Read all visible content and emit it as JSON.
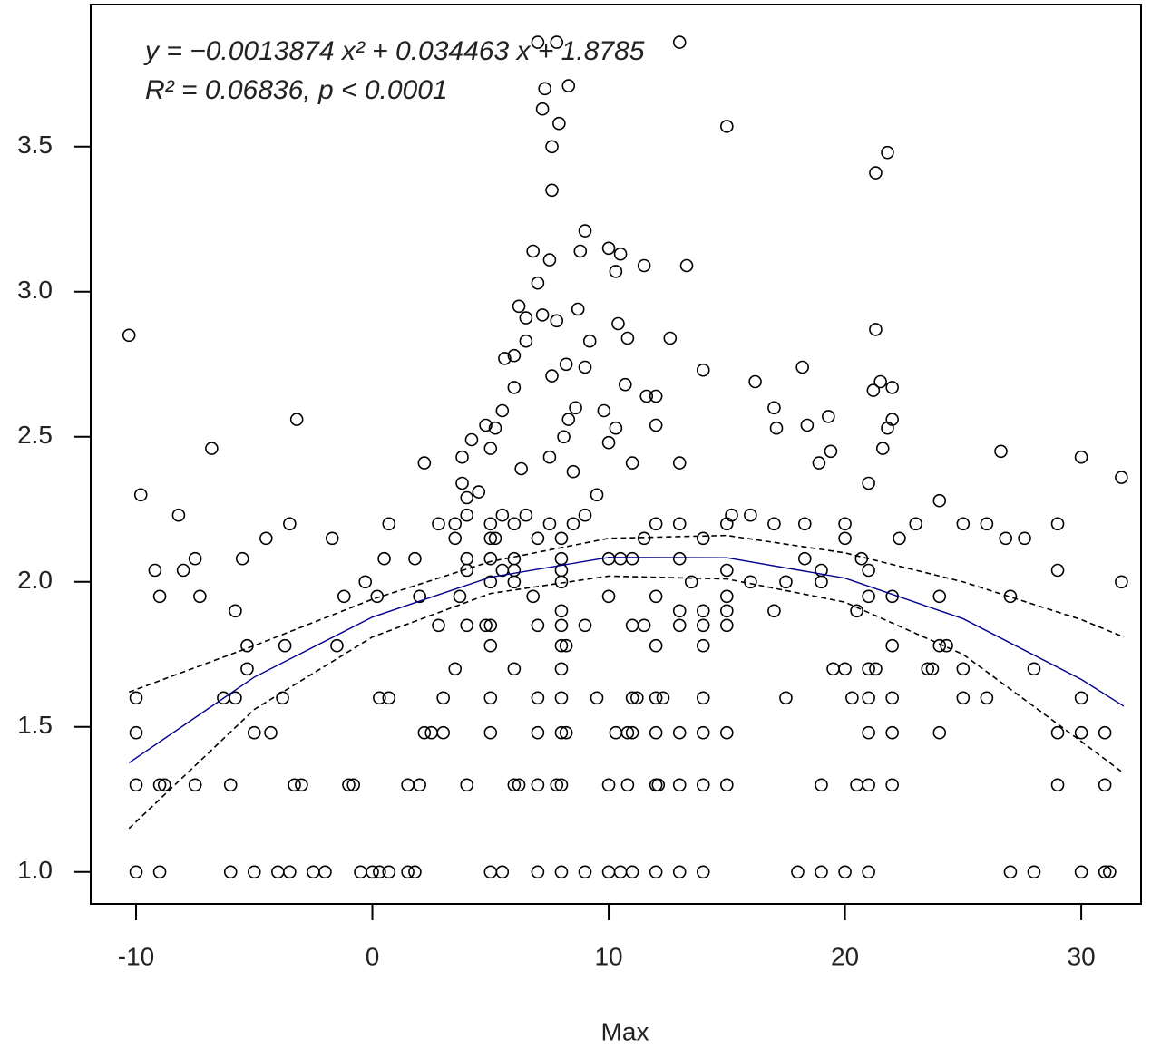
{
  "chart_data": {
    "type": "scatter",
    "xlabel": "Max",
    "annotations": [
      "y = −0.0013874 x² + 0.034463 x + 1.8785",
      "R² = 0.06836,  p < 0.0001"
    ],
    "xlim": [
      -11.92,
      32.53
    ],
    "ylim": [
      0.89,
      3.99
    ],
    "xticks": [
      -10,
      0,
      10,
      20,
      30
    ],
    "yticks": [
      {
        "value": 1,
        "label": "1.0"
      },
      1.5,
      {
        "value": 2,
        "label": "2.0"
      },
      2.5,
      {
        "value": 3,
        "label": "3.0"
      },
      3.5
    ],
    "series": [
      {
        "type": "scatter",
        "color": "#000000",
        "x": [
          -10,
          -9,
          -6,
          -5,
          -4,
          -3.5,
          -2.5,
          -2,
          -0.5,
          0,
          0.3,
          0.7,
          1.5,
          1.8,
          5,
          5.5,
          7,
          8,
          9,
          10,
          10.5,
          11,
          12,
          13,
          14,
          18,
          19,
          20,
          21,
          27,
          28,
          30,
          31,
          31.2,
          -10,
          -9,
          -8.8,
          -7.5,
          -6,
          -3.3,
          -3,
          -1,
          -0.8,
          1.5,
          2,
          4,
          6,
          6.2,
          7,
          7.8,
          8,
          10,
          10.8,
          12,
          12.1,
          13,
          14,
          15,
          19,
          20.5,
          21,
          22,
          29,
          31,
          -10,
          -5,
          -4.3,
          2.2,
          2.5,
          3,
          5,
          7,
          8,
          8.2,
          10.3,
          10.8,
          11,
          12,
          13,
          14,
          15,
          21,
          22,
          24,
          29,
          30,
          31,
          -10,
          -6.3,
          -5.8,
          -3.8,
          0.3,
          0.7,
          3,
          5,
          7,
          8,
          9.5,
          11,
          11.2,
          12,
          12.3,
          14,
          17.5,
          20.3,
          21,
          22,
          25,
          26,
          30,
          -5.3,
          3.5,
          6,
          8,
          19.5,
          20,
          21,
          21.3,
          23.5,
          23.7,
          25,
          28,
          -5.3,
          -3.7,
          -1.5,
          5,
          8,
          8.2,
          12,
          14,
          22,
          24,
          24.3,
          2.8,
          4,
          4.8,
          5,
          7,
          8,
          9,
          11,
          11.5,
          13,
          14,
          15,
          -5.8,
          8,
          13,
          14,
          15,
          17,
          20.5,
          -9,
          -7.3,
          -1.2,
          0.2,
          2,
          3.7,
          6.8,
          10,
          12,
          15,
          21,
          22,
          24,
          27,
          -0.3,
          5,
          6,
          8,
          13.5,
          16,
          17.5,
          19,
          31.7,
          -9.2,
          -8,
          4,
          5.5,
          6,
          8,
          19,
          21,
          29,
          15,
          -7.5,
          -5.5,
          0.5,
          1.8,
          4,
          5,
          6,
          8,
          10,
          10.5,
          11,
          13,
          18.3,
          20.7,
          -1.7,
          -4.5,
          3.5,
          5,
          5.2,
          7,
          8,
          11.5,
          14,
          20,
          22.3,
          26.8,
          27.6,
          -3.5,
          0.7,
          2.8,
          3.5,
          5,
          6,
          7.5,
          8.5,
          12,
          13,
          15,
          17,
          18.3,
          20,
          23,
          25,
          26,
          29,
          -8.2,
          4,
          5.5,
          6.5,
          9,
          15.2,
          16,
          -10.3,
          -9.8,
          -6.8,
          -3.2,
          2.2,
          3.8,
          3.8,
          4,
          4.2,
          4.5,
          4.8,
          5,
          5.2,
          5.5,
          5.6,
          6,
          6,
          6.2,
          6.3,
          6.5,
          6.5,
          6.8,
          7,
          7.2,
          7.5,
          7.5,
          7.6,
          7.8,
          7.6,
          7.6,
          7.9,
          7.2,
          7.3,
          7,
          7.8,
          8.3,
          8.2,
          8.3,
          8.1,
          8.5,
          8.7,
          8.8,
          8.6,
          9,
          9,
          9.2,
          9.5,
          9.8,
          10,
          10.3,
          10.5,
          10.4,
          10.3,
          10,
          10.7,
          10.8,
          11,
          11.5,
          11.6,
          12,
          12,
          12.6,
          13,
          13.3,
          13,
          14,
          15,
          16.2,
          17,
          17.1,
          18.2,
          18.4,
          18.9,
          19.3,
          19.4,
          21.3,
          21.8,
          21.3,
          21.5,
          21.2,
          22,
          22,
          21.8,
          21.6,
          21,
          24,
          26.6,
          30,
          31.7
        ],
        "values": [
          1,
          1,
          1,
          1,
          1,
          1,
          1,
          1,
          1,
          1,
          1,
          1,
          1,
          1,
          1,
          1,
          1,
          1,
          1,
          1,
          1,
          1,
          1,
          1,
          1,
          1,
          1,
          1,
          1,
          1,
          1,
          1,
          1,
          1,
          1.3,
          1.3,
          1.3,
          1.3,
          1.3,
          1.3,
          1.3,
          1.3,
          1.3,
          1.3,
          1.3,
          1.3,
          1.3,
          1.3,
          1.3,
          1.3,
          1.3,
          1.3,
          1.3,
          1.3,
          1.3,
          1.3,
          1.3,
          1.3,
          1.3,
          1.3,
          1.3,
          1.3,
          1.3,
          1.3,
          1.48,
          1.48,
          1.48,
          1.48,
          1.48,
          1.48,
          1.48,
          1.48,
          1.48,
          1.48,
          1.48,
          1.48,
          1.48,
          1.48,
          1.48,
          1.48,
          1.48,
          1.48,
          1.48,
          1.48,
          1.48,
          1.48,
          1.48,
          1.6,
          1.6,
          1.6,
          1.6,
          1.6,
          1.6,
          1.6,
          1.6,
          1.6,
          1.6,
          1.6,
          1.6,
          1.6,
          1.6,
          1.6,
          1.6,
          1.6,
          1.6,
          1.6,
          1.6,
          1.6,
          1.6,
          1.6,
          1.7,
          1.7,
          1.7,
          1.7,
          1.7,
          1.7,
          1.7,
          1.7,
          1.7,
          1.7,
          1.7,
          1.7,
          1.78,
          1.78,
          1.78,
          1.78,
          1.78,
          1.78,
          1.78,
          1.78,
          1.78,
          1.78,
          1.78,
          1.85,
          1.85,
          1.85,
          1.85,
          1.85,
          1.85,
          1.85,
          1.85,
          1.85,
          1.85,
          1.85,
          1.85,
          1.9,
          1.9,
          1.9,
          1.9,
          1.9,
          1.9,
          1.9,
          1.95,
          1.95,
          1.95,
          1.95,
          1.95,
          1.95,
          1.95,
          1.95,
          1.95,
          1.95,
          1.95,
          1.95,
          1.95,
          1.95,
          2,
          2,
          2,
          2,
          2,
          2,
          2,
          2,
          2,
          2.04,
          2.04,
          2.04,
          2.04,
          2.04,
          2.04,
          2.04,
          2.04,
          2.04,
          2.04,
          2.08,
          2.08,
          2.08,
          2.08,
          2.08,
          2.08,
          2.08,
          2.08,
          2.08,
          2.08,
          2.08,
          2.08,
          2.08,
          2.08,
          2.15,
          2.15,
          2.15,
          2.15,
          2.15,
          2.15,
          2.15,
          2.15,
          2.15,
          2.15,
          2.15,
          2.15,
          2.15,
          2.2,
          2.2,
          2.2,
          2.2,
          2.2,
          2.2,
          2.2,
          2.2,
          2.2,
          2.2,
          2.2,
          2.2,
          2.2,
          2.2,
          2.2,
          2.2,
          2.2,
          2.2,
          2.23,
          2.23,
          2.23,
          2.23,
          2.23,
          2.23,
          2.23,
          2.85,
          2.3,
          2.46,
          2.56,
          2.41,
          2.34,
          2.43,
          2.29,
          2.49,
          2.31,
          2.54,
          2.46,
          2.53,
          2.59,
          2.77,
          2.78,
          2.67,
          2.95,
          2.39,
          2.83,
          2.91,
          3.14,
          3.03,
          2.92,
          3.11,
          2.43,
          2.71,
          2.9,
          3.35,
          3.5,
          3.58,
          3.63,
          3.7,
          3.86,
          3.86,
          3.71,
          2.75,
          2.56,
          2.5,
          2.38,
          2.94,
          3.14,
          2.6,
          3.21,
          2.74,
          2.83,
          2.3,
          2.59,
          3.15,
          3.07,
          3.13,
          2.89,
          2.53,
          2.48,
          2.68,
          2.84,
          2.41,
          3.09,
          2.64,
          2.64,
          2.54,
          2.84,
          3.86,
          3.09,
          2.41,
          2.73,
          3.57,
          2.69,
          2.6,
          2.53,
          2.74,
          2.54,
          2.41,
          2.57,
          2.45,
          3.41,
          3.48,
          2.87,
          2.69,
          2.66,
          2.67,
          2.56,
          2.53,
          2.46,
          2.34,
          2.28,
          2.45,
          2.43,
          2.36
        ]
      },
      {
        "type": "line",
        "color": "#00008b",
        "dash": false,
        "x": [
          -10.3,
          -5,
          0,
          5,
          10,
          15,
          20,
          25,
          30,
          31.8
        ],
        "values": [
          1.376,
          1.6715,
          1.8785,
          2.0161,
          2.0844,
          2.0832,
          2.0128,
          1.873,
          1.6637,
          1.5714
        ]
      },
      {
        "type": "line",
        "color": "#000000",
        "dash": true,
        "x": [
          -10.3,
          -5,
          0,
          5,
          10,
          15,
          20,
          25,
          30,
          31.8
        ],
        "values": [
          1.62,
          1.78,
          1.94,
          2.07,
          2.15,
          2.16,
          2.1,
          2,
          1.87,
          1.81
        ]
      },
      {
        "type": "line",
        "color": "#000000",
        "dash": true,
        "x": [
          -10.3,
          -5,
          0,
          5,
          10,
          15,
          20,
          25,
          30,
          31.8
        ],
        "values": [
          1.15,
          1.56,
          1.81,
          1.96,
          2.02,
          2.01,
          1.93,
          1.75,
          1.45,
          1.34
        ]
      }
    ]
  }
}
